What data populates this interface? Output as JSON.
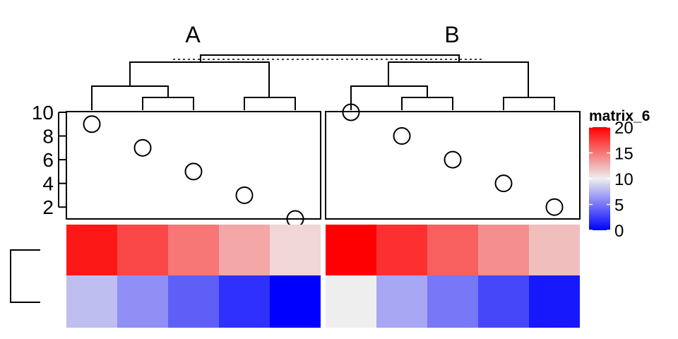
{
  "chart_data": {
    "type": "heatmap",
    "legend": {
      "title": "matrix_6",
      "ticks": [
        0,
        5,
        10,
        15,
        20
      ],
      "range": [
        0,
        20
      ],
      "colors": {
        "low": "#0000FF",
        "mid": "#EEEEEE",
        "high": "#FF0000"
      },
      "placement": "right"
    },
    "points_annotation": {
      "type": "scatter",
      "ticks": [
        2,
        4,
        6,
        8,
        10
      ],
      "ylim": [
        1,
        10
      ]
    },
    "slices": [
      {
        "title": "A",
        "points": [
          9,
          7,
          5,
          3,
          1
        ],
        "rows": [
          [
            19,
            17,
            15,
            13,
            11
          ],
          [
            8,
            6,
            4,
            2,
            0
          ]
        ]
      },
      {
        "title": "B",
        "points": [
          10,
          8,
          6,
          4,
          2
        ],
        "rows": [
          [
            20,
            18,
            16,
            14,
            12
          ],
          [
            10,
            7,
            5,
            3,
            1
          ]
        ]
      }
    ]
  }
}
